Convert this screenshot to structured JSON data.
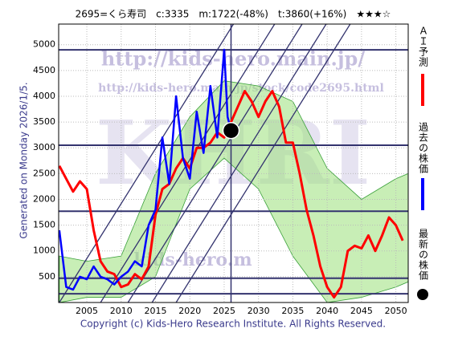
{
  "chart_data": {
    "type": "line",
    "title": "2695=くら寿司　c:3335　m:1722(-48%)　t:3860(+16%)　★★★☆",
    "side_note": "Generated on Monday 2026/1/5.",
    "footer": "Copyright (c) Kids-Hero Research Institute. All Rights Reserved.",
    "watermarks": [
      "http://kids-hero.main.jp/",
      "http://kids-hero.main.jp/stock/code2695.html",
      "KHRI",
      "kids-hero.m"
    ],
    "xlim": [
      2000.9,
      2051.8
    ],
    "ylim": [
      0,
      5400
    ],
    "xticks": [
      2005,
      2010,
      2015,
      2020,
      2025,
      2030,
      2035,
      2040,
      2045,
      2050
    ],
    "yticks": [
      500,
      1000,
      1500,
      2000,
      2500,
      3000,
      3500,
      4000,
      4500,
      5000
    ],
    "grid": true,
    "series": [
      {
        "name": "ＡＩ予測",
        "color": "#ff0000",
        "x": [
          2001,
          2002,
          2003,
          2004,
          2005,
          2006,
          2007,
          2008,
          2009,
          2010,
          2011,
          2012,
          2013,
          2014,
          2015,
          2016,
          2017,
          2018,
          2019,
          2020,
          2021,
          2022,
          2023,
          2024,
          2025,
          2026,
          2027,
          2028,
          2029,
          2030,
          2031,
          2032,
          2033,
          2034,
          2035,
          2036,
          2037,
          2038,
          2039,
          2040,
          2041,
          2042,
          2043,
          2044,
          2045,
          2046,
          2047,
          2048,
          2049,
          2050,
          2051
        ],
        "values": [
          2650,
          2400,
          2150,
          2350,
          2200,
          1400,
          800,
          600,
          550,
          300,
          350,
          550,
          450,
          700,
          1700,
          2200,
          2300,
          2600,
          2800,
          2600,
          3000,
          3000,
          3100,
          3300,
          3200,
          3500,
          3800,
          4100,
          3900,
          3600,
          3900,
          4100,
          3800,
          3100,
          3100,
          2500,
          1800,
          1300,
          700,
          300,
          100,
          300,
          1000,
          1100,
          1050,
          1300,
          1000,
          1300,
          1650,
          1500,
          1200
        ]
      },
      {
        "name": "過去の株価",
        "color": "#0000ff",
        "x": [
          2001,
          2002,
          2003,
          2004,
          2005,
          2006,
          2007,
          2008,
          2009,
          2010,
          2011,
          2012,
          2013,
          2014,
          2015,
          2016,
          2017,
          2018,
          2019,
          2020,
          2021,
          2022,
          2023,
          2024,
          2025,
          2025.5,
          2026
        ],
        "values": [
          1400,
          300,
          250,
          500,
          450,
          700,
          500,
          450,
          350,
          500,
          600,
          800,
          700,
          1500,
          1800,
          3200,
          2300,
          4000,
          2800,
          2400,
          3700,
          2900,
          4200,
          3200,
          4900,
          3600,
          3335
        ]
      }
    ],
    "latest": {
      "name": "最新の株価",
      "color": "#000000",
      "x": 2026,
      "value": 3335
    },
    "band": {
      "color": "#9be07a",
      "x": [
        2001,
        2005,
        2010,
        2015,
        2020,
        2025,
        2030,
        2035,
        2040,
        2045,
        2050,
        2051.8
      ],
      "upper": [
        900,
        800,
        900,
        2500,
        3600,
        4300,
        4200,
        3900,
        2600,
        2000,
        2400,
        2500
      ],
      "lower": [
        0,
        100,
        100,
        500,
        2200,
        2800,
        2200,
        900,
        0,
        100,
        300,
        400
      ]
    },
    "hlines": [
      4900,
      3050,
      1770,
      470,
      170
    ],
    "vlines": [
      2026
    ],
    "channels": [
      [
        2001,
        0,
        2026.35,
        5400
      ],
      [
        2007,
        0,
        2032.35,
        5400
      ],
      [
        2011,
        0,
        2036.35,
        5400
      ],
      [
        2014.5,
        0,
        2039.85,
        5400
      ],
      [
        2018,
        0,
        2043.35,
        5400
      ]
    ]
  }
}
